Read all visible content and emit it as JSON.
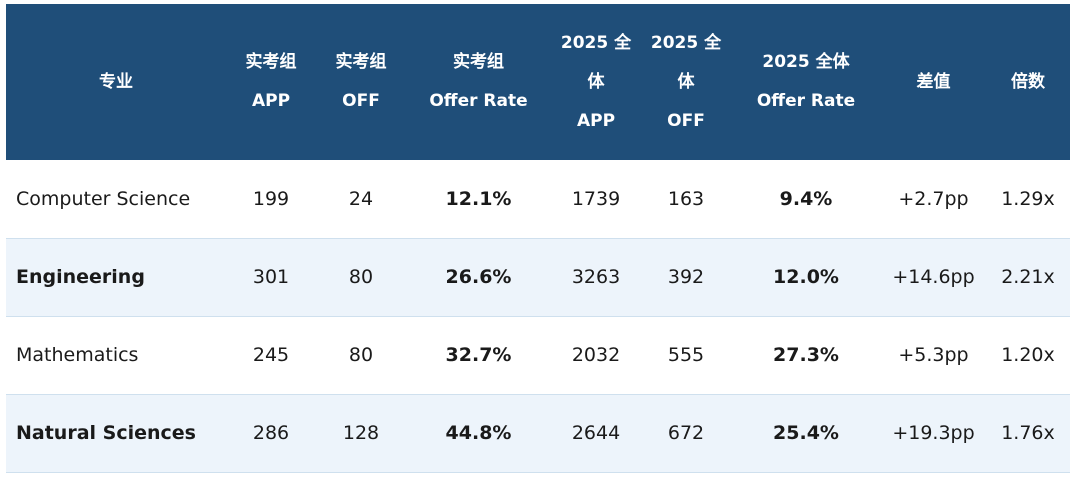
{
  "headers": {
    "major": [
      "专业"
    ],
    "group_app": [
      "实考组",
      "APP"
    ],
    "group_off": [
      "实考组",
      "OFF"
    ],
    "group_rate": [
      "实考组",
      "Offer Rate"
    ],
    "all_app": [
      "2025 全",
      "体",
      "APP"
    ],
    "all_off": [
      "2025 全",
      "体",
      "OFF"
    ],
    "all_rate": [
      "2025 全体",
      "Offer Rate"
    ],
    "diff": [
      "差值"
    ],
    "ratio": [
      "倍数"
    ]
  },
  "rows": [
    {
      "major": "Computer Science",
      "app": "199",
      "off": "24",
      "rate": "12.1%",
      "app25": "1739",
      "off25": "163",
      "rate25": "9.4%",
      "diff": "+2.7pp",
      "ratio": "1.29x"
    },
    {
      "major": "Engineering",
      "app": "301",
      "off": "80",
      "rate": "26.6%",
      "app25": "3263",
      "off25": "392",
      "rate25": "12.0%",
      "diff": "+14.6pp",
      "ratio": "2.21x"
    },
    {
      "major": "Mathematics",
      "app": "245",
      "off": "80",
      "rate": "32.7%",
      "app25": "2032",
      "off25": "555",
      "rate25": "27.3%",
      "diff": "+5.3pp",
      "ratio": "1.20x"
    },
    {
      "major": "Natural Sciences",
      "app": "286",
      "off": "128",
      "rate": "44.8%",
      "app25": "2644",
      "off25": "672",
      "rate25": "25.4%",
      "diff": "+19.3pp",
      "ratio": "1.76x"
    }
  ],
  "colors": {
    "header_bg": "#1f4e79",
    "alt_row_bg": "#edf4fb",
    "row_border": "#cfe0ee"
  }
}
